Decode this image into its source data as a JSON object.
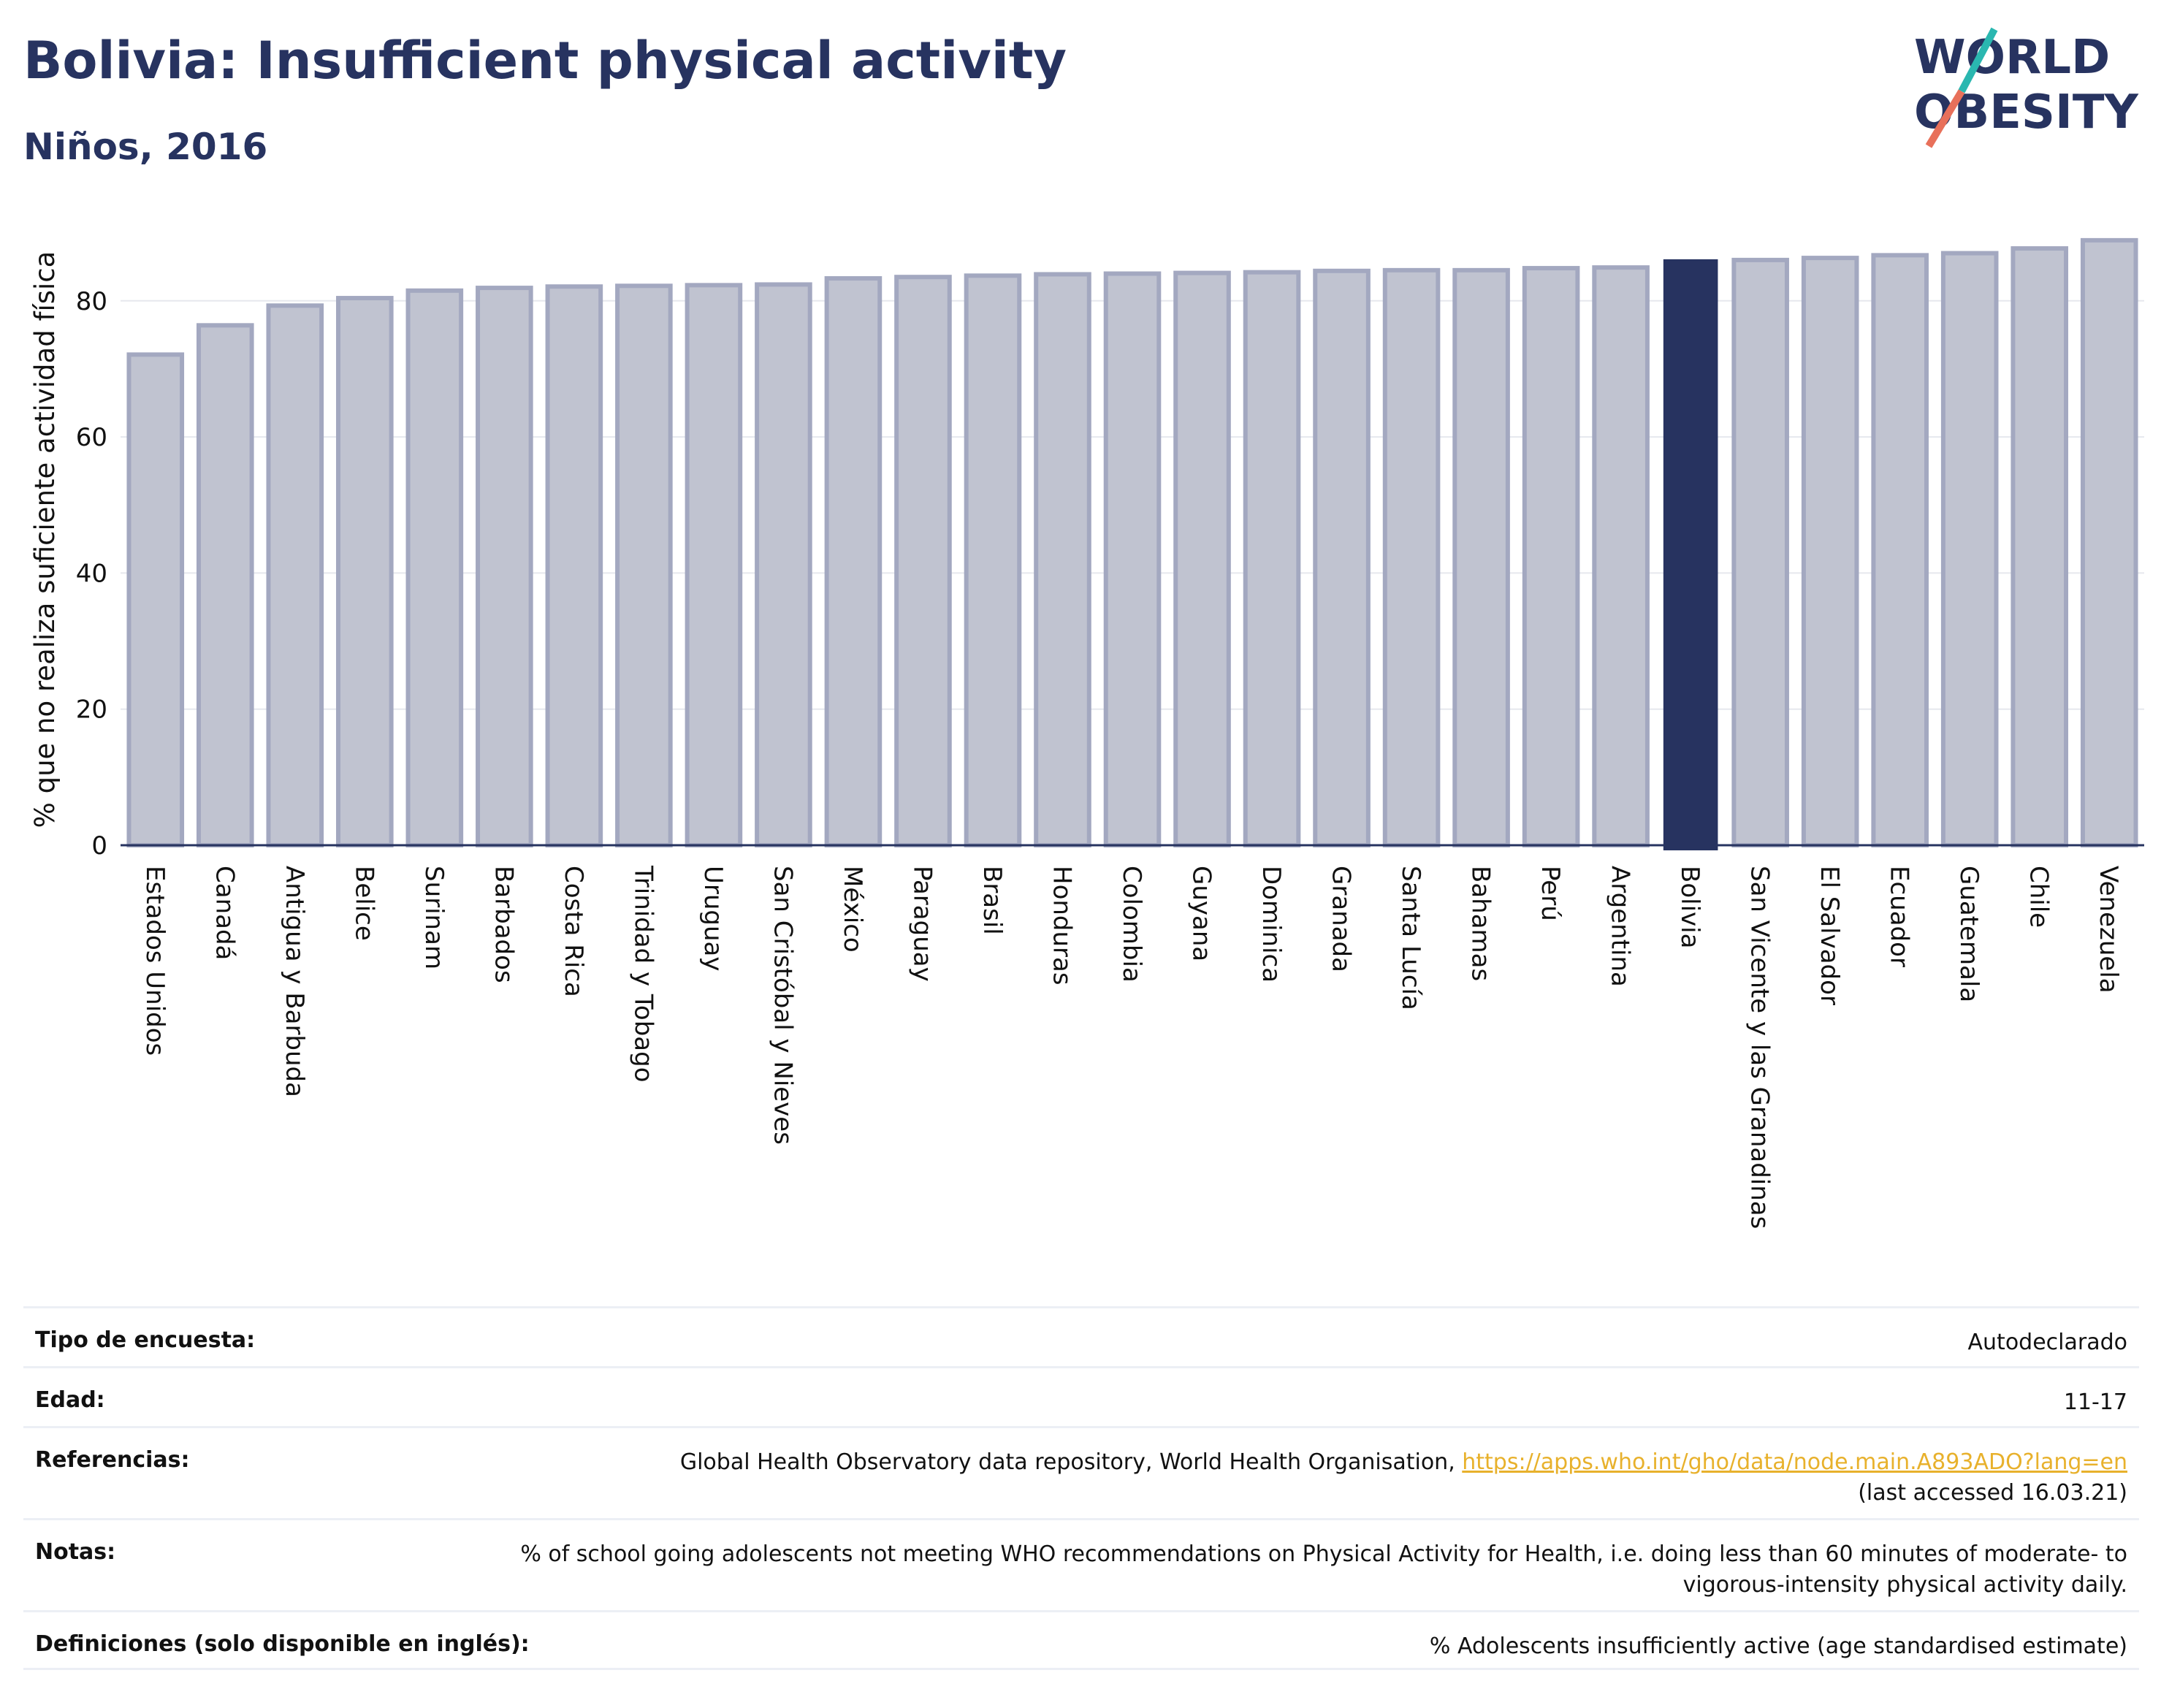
{
  "header": {
    "title": "Bolivia: Insufficient physical activity",
    "subtitle": "Niños, 2016"
  },
  "logo": {
    "line1": "WORLD",
    "line2": "OBESITY"
  },
  "colors": {
    "title": "#273360",
    "bar_fill": "#c0c3d0",
    "bar_stroke": "#a3a8c0",
    "highlight": "#273360",
    "logo_teal": "#2ab7b0",
    "logo_coral": "#e8705a",
    "link": "#e8b12c"
  },
  "chart_data": {
    "type": "bar",
    "title": "Bolivia: Insufficient physical activity",
    "subtitle": "Niños, 2016",
    "ylabel": "% que no realiza suficiente actividad física",
    "xlabel": "",
    "ylim": [
      0,
      92
    ],
    "yticks": [
      0,
      20,
      40,
      60,
      80
    ],
    "grid": true,
    "highlight": "Bolivia",
    "categories": [
      "Estados Unidos",
      "Canadá",
      "Antigua y Barbuda",
      "Belice",
      "Surinam",
      "Barbados",
      "Costa Rica",
      "Trinidad y Tobago",
      "Uruguay",
      "San Cristóbal y Nieves",
      "México",
      "Paraguay",
      "Brasil",
      "Honduras",
      "Colombia",
      "Guyana",
      "Dominica",
      "Granada",
      "Santa Lucía",
      "Bahamas",
      "Perú",
      "Argentina",
      "Bolivia",
      "San Vicente y las Granadinas",
      "El Salvador",
      "Ecuador",
      "Guatemala",
      "Chile",
      "Venezuela"
    ],
    "values": [
      72.1,
      76.4,
      79.3,
      80.4,
      81.5,
      81.9,
      82.1,
      82.2,
      82.3,
      82.4,
      83.3,
      83.5,
      83.7,
      83.9,
      84.0,
      84.1,
      84.2,
      84.4,
      84.5,
      84.5,
      84.8,
      84.9,
      86.0,
      86.0,
      86.3,
      86.7,
      87.0,
      87.7,
      88.9
    ]
  },
  "info": [
    {
      "label": "Tipo de encuesta:",
      "value": "Autodeclarado"
    },
    {
      "label": "Edad:",
      "value": "11-17"
    },
    {
      "label": "Referencias:",
      "value": "Global Health Observatory data repository, World Health Organisation, ",
      "link": "https://apps.who.int/gho/data/node.main.A893ADO?lang=en",
      "after": "(last accessed 16.03.21)"
    },
    {
      "label": "Notas:",
      "value": "% of school going adolescents not meeting WHO recommendations on Physical Activity for Health, i.e. doing less than 60 minutes of moderate- to vigorous-intensity physical activity daily."
    },
    {
      "label": "Definiciones (solo disponible en inglés):",
      "value": "% Adolescents insufficiently active (age standardised estimate)"
    }
  ]
}
